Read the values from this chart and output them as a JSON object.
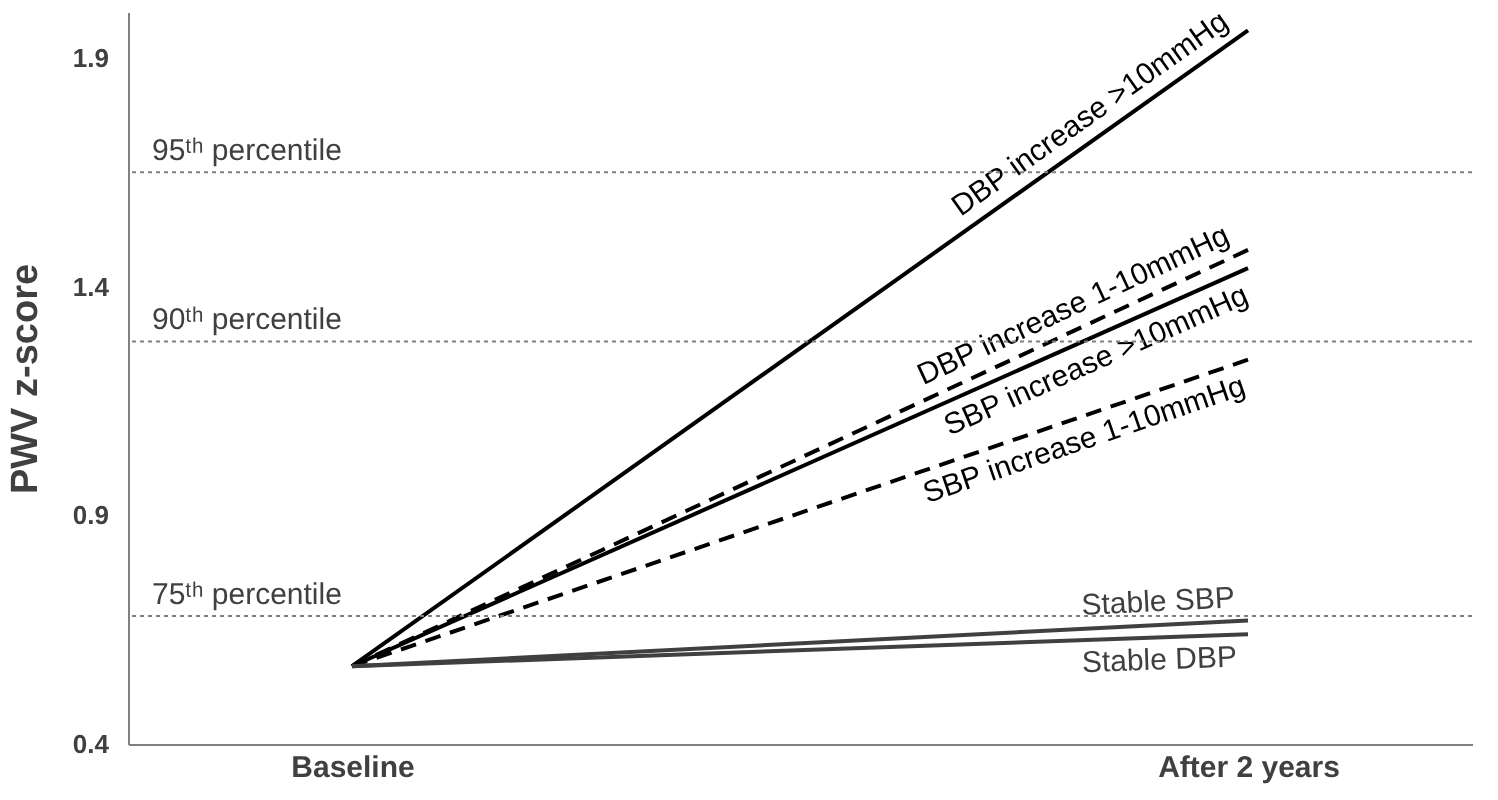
{
  "chart_data": {
    "type": "line",
    "ylabel": "PWV z-score",
    "categories": [
      "Baseline",
      "After 2 years"
    ],
    "ylim": [
      0.4,
      2.0
    ],
    "yticks": [
      0.4,
      0.9,
      1.4,
      1.9
    ],
    "grid": false,
    "marker": "none",
    "series": [
      {
        "name": "DBP increase >10mmHg",
        "color": "#000000",
        "line_style": "solid",
        "values": [
          0.57,
          1.96
        ]
      },
      {
        "name": "DBP increase 1-10mmHg",
        "color": "#000000",
        "line_style": "dashed",
        "values": [
          0.57,
          1.48
        ]
      },
      {
        "name": "SBP increase >10mmHg",
        "color": "#000000",
        "line_style": "solid",
        "values": [
          0.57,
          1.44
        ]
      },
      {
        "name": "SBP increase 1-10mmHg",
        "color": "#000000",
        "line_style": "dashed",
        "values": [
          0.57,
          1.24
        ]
      },
      {
        "name": "Stable SBP",
        "color": "#404040",
        "line_style": "solid",
        "values": [
          0.57,
          0.67
        ]
      },
      {
        "name": "Stable DBP",
        "color": "#404040",
        "line_style": "solid",
        "values": [
          0.57,
          0.64
        ]
      }
    ],
    "ref_lines": [
      {
        "axis": "y",
        "value": 1.65,
        "label": "95ᵗʰ percentile",
        "color": "#808080",
        "line_style": "dotted"
      },
      {
        "axis": "y",
        "value": 1.28,
        "label": "90ᵗʰ percentile",
        "color": "#808080",
        "line_style": "dotted"
      },
      {
        "axis": "y",
        "value": 0.68,
        "label": "75ᵗʰ percentile",
        "color": "#808080",
        "line_style": "dotted"
      }
    ]
  }
}
